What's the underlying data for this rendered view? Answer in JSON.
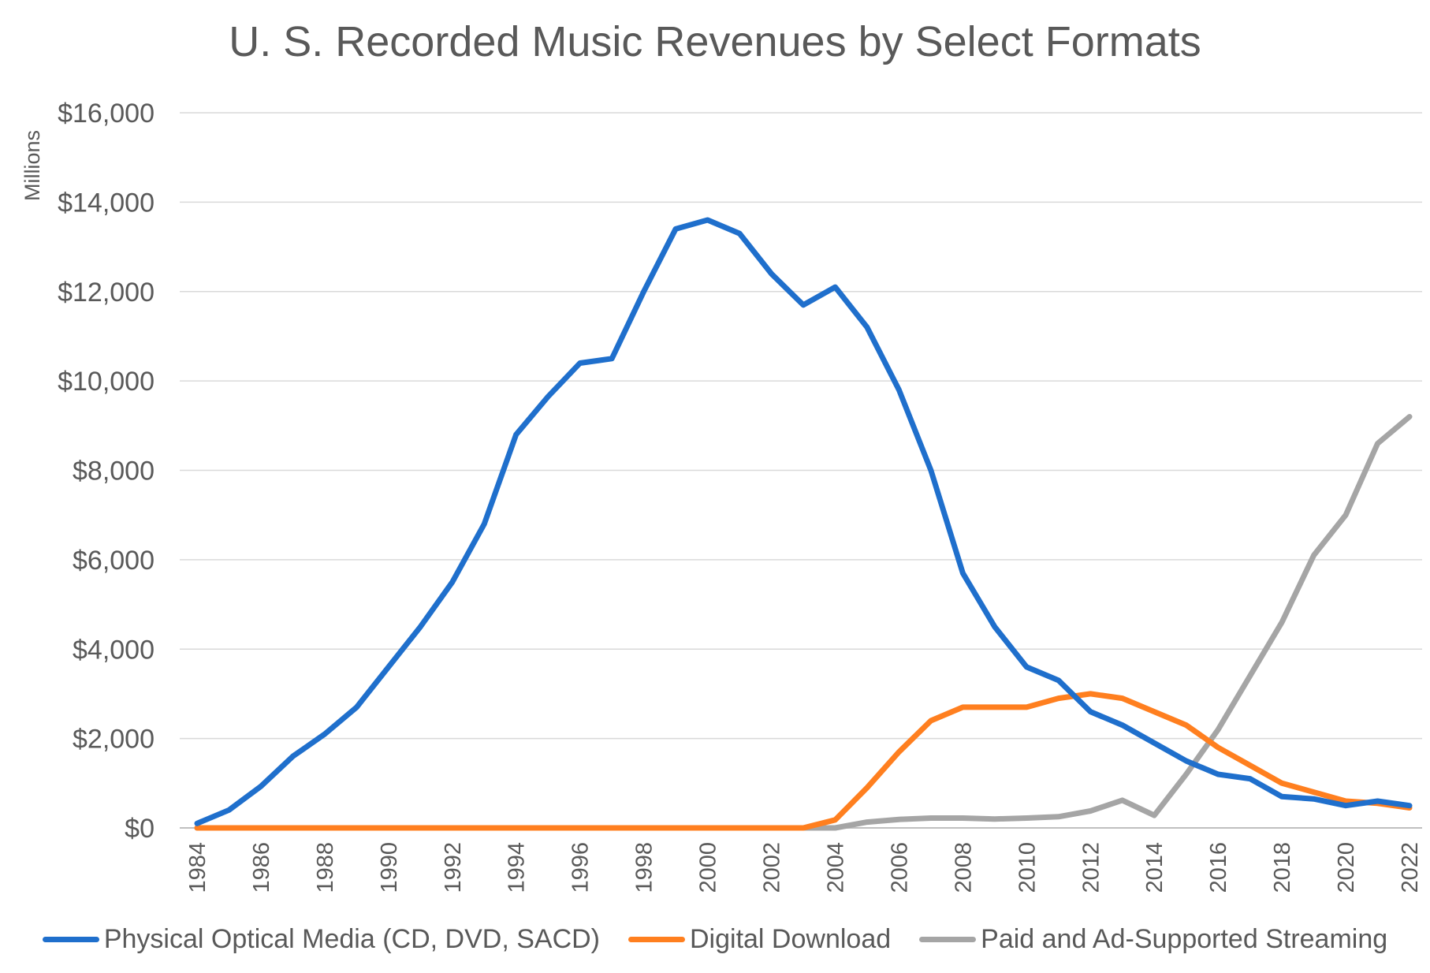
{
  "chart_data": {
    "type": "line",
    "title": "U. S. Recorded Music Revenues by Select Formats",
    "ylabel": "Millions",
    "xlabel": "",
    "ylim": [
      0,
      16000
    ],
    "yticks": [
      0,
      2000,
      4000,
      6000,
      8000,
      10000,
      12000,
      14000,
      16000
    ],
    "ytick_labels": [
      "$0",
      "$2,000",
      "$4,000",
      "$6,000",
      "$8,000",
      "$10,000",
      "$12,000",
      "$14,000",
      "$16,000"
    ],
    "xtick_labels": [
      "1984",
      "1986",
      "1988",
      "1990",
      "1992",
      "1994",
      "1996",
      "1998",
      "2000",
      "2002",
      "2004",
      "2006",
      "2008",
      "2010",
      "2012",
      "2014",
      "2016",
      "2018",
      "2020",
      "2022"
    ],
    "grid": true,
    "legend_position": "bottom",
    "x": [
      1984,
      1985,
      1986,
      1987,
      1988,
      1989,
      1990,
      1991,
      1992,
      1993,
      1994,
      1995,
      1996,
      1997,
      1998,
      1999,
      2000,
      2001,
      2002,
      2003,
      2004,
      2005,
      2006,
      2007,
      2008,
      2009,
      2010,
      2011,
      2012,
      2013,
      2014,
      2015,
      2016,
      2017,
      2018,
      2019,
      2020,
      2021,
      2022
    ],
    "series": [
      {
        "name": "Physical Optical Media (CD, DVD, SACD)",
        "color": "#1f6fcc",
        "values": [
          100,
          400,
          930,
          1600,
          2100,
          2700,
          3600,
          4500,
          5500,
          6800,
          8800,
          9650,
          10400,
          10500,
          12000,
          13400,
          13600,
          13300,
          12400,
          11700,
          12100,
          11200,
          9800,
          8000,
          5700,
          4500,
          3600,
          3300,
          2600,
          2300,
          1900,
          1500,
          1200,
          1100,
          700,
          650,
          500,
          600,
          500
        ]
      },
      {
        "name": "Digital Download",
        "color": "#ff7f1f",
        "values": [
          0,
          0,
          0,
          0,
          0,
          0,
          0,
          0,
          0,
          0,
          0,
          0,
          0,
          0,
          0,
          0,
          0,
          0,
          0,
          0,
          180,
          900,
          1700,
          2400,
          2700,
          2700,
          2700,
          2900,
          3000,
          2900,
          2600,
          2300,
          1800,
          1400,
          1000,
          800,
          600,
          550,
          450
        ]
      },
      {
        "name": "Paid and Ad-Supported Streaming",
        "color": "#a5a5a5",
        "values": [
          0,
          0,
          0,
          0,
          0,
          0,
          0,
          0,
          0,
          0,
          0,
          0,
          0,
          0,
          0,
          0,
          0,
          0,
          0,
          0,
          0,
          130,
          190,
          220,
          220,
          200,
          220,
          250,
          380,
          620,
          280,
          1200,
          2200,
          3400,
          4600,
          6100,
          7000,
          8600,
          9200
        ]
      }
    ]
  }
}
